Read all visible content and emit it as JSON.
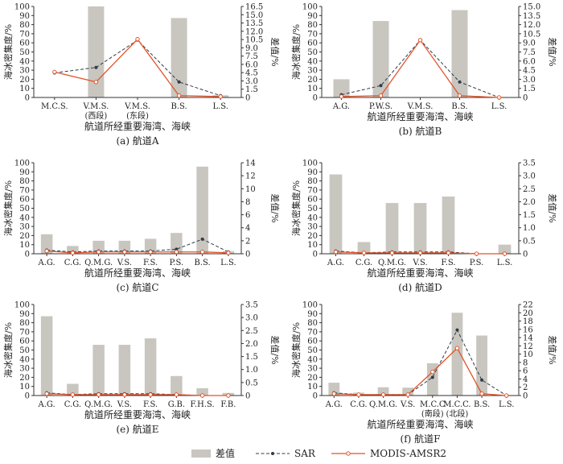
{
  "chart_data": [
    {
      "type": "bar+line",
      "caption": "(a) 航道A",
      "xlabel": "航道所经重要海湾、海峡",
      "ylabel_left": "海冰密集度/%",
      "ylabel_right": "差值/%",
      "categories": [
        "M.C.S.",
        "V.M.S.\n(西段)",
        "V.M.S.\n(东段)",
        "B.S.",
        "L.S."
      ],
      "ylim_left": [
        0,
        100
      ],
      "ylim_right": [
        0,
        16.5
      ],
      "yticks_left": [
        "0",
        "10",
        "20",
        "30",
        "40",
        "50",
        "60",
        "70",
        "80",
        "90",
        "100"
      ],
      "yticks_right": [
        "0",
        "1.5",
        "3.0",
        "4.5",
        "6.0",
        "7.5",
        "9.0",
        "10.5",
        "12.0",
        "13.5",
        "15.0",
        "16.5"
      ],
      "diff": [
        0,
        16.5,
        0,
        14.4,
        0.4
      ],
      "sar": [
        27,
        33,
        63,
        17,
        2
      ],
      "modis": [
        28,
        17,
        64,
        2,
        1
      ]
    },
    {
      "type": "bar+line",
      "caption": "(b) 航道B",
      "xlabel": "航道所经重要海湾、海峡",
      "ylabel_left": "海冰密集度/%",
      "ylabel_right": "差值/%",
      "categories": [
        "A.G.",
        "P.W.S.",
        "V.M.S.",
        "B.S.",
        "L.S."
      ],
      "ylim_left": [
        0,
        100
      ],
      "ylim_right": [
        0,
        15
      ],
      "yticks_left": [
        "0",
        "10",
        "20",
        "30",
        "40",
        "50",
        "60",
        "70",
        "80",
        "90",
        "100"
      ],
      "yticks_right": [
        "0",
        "1.5",
        "3.0",
        "4.5",
        "6.0",
        "7.5",
        "9.0",
        "10.5",
        "12.0",
        "13.5",
        "15.0"
      ],
      "diff": [
        3.0,
        12.6,
        0,
        14.4,
        0
      ],
      "sar": [
        3,
        13,
        63,
        17,
        0
      ],
      "modis": [
        1,
        2,
        63,
        2,
        0
      ]
    },
    {
      "type": "bar+line",
      "caption": "(c) 航道C",
      "xlabel": "航道所经重要海湾、海峡",
      "ylabel_left": "海冰密集度/%",
      "ylabel_right": "差值/%",
      "categories": [
        "A.G.",
        "C.G.",
        "Q.M.G.",
        "V.S.",
        "F.S.",
        "P.S.",
        "B.S.",
        "L.S."
      ],
      "ylim_left": [
        0,
        100
      ],
      "ylim_right": [
        0,
        14
      ],
      "yticks_left": [
        "0",
        "10",
        "20",
        "30",
        "40",
        "50",
        "60",
        "70",
        "80",
        "90",
        "100"
      ],
      "yticks_right": [
        "0",
        "2",
        "4",
        "6",
        "8",
        "10",
        "12",
        "14"
      ],
      "diff": [
        3.0,
        1.2,
        2.0,
        2.0,
        2.3,
        3.2,
        13.4,
        0.4
      ],
      "sar": [
        4,
        2,
        3,
        3,
        3,
        5,
        16,
        2
      ],
      "modis": [
        3,
        1,
        2,
        2,
        2,
        2,
        2,
        1
      ]
    },
    {
      "type": "bar+line",
      "caption": "(d) 航道D",
      "xlabel": "航道所经重要海湾、海峡",
      "ylabel_left": "海冰密集度/%",
      "ylabel_right": "差值/%",
      "categories": [
        "A.G.",
        "C.G.",
        "Q.M.G.",
        "V.S.",
        "F.S.",
        "P.S.",
        "L.S."
      ],
      "ylim_left": [
        0,
        100
      ],
      "ylim_right": [
        0,
        3.5
      ],
      "yticks_left": [
        "0",
        "10",
        "20",
        "30",
        "40",
        "50",
        "60",
        "70",
        "80",
        "90",
        "100"
      ],
      "yticks_right": [
        "0",
        "0.5",
        "1.0",
        "1.5",
        "2.0",
        "2.5",
        "3.0",
        "3.5"
      ],
      "diff": [
        3.05,
        0.45,
        1.95,
        1.95,
        2.2,
        0,
        0.35
      ],
      "sar": [
        3,
        1,
        2,
        2,
        2,
        0,
        0
      ],
      "modis": [
        2,
        1,
        1,
        1,
        1,
        0,
        0
      ]
    },
    {
      "type": "bar+line",
      "caption": "(e) 航道E",
      "xlabel": "航道所经重要海湾、海峡",
      "ylabel_left": "海冰密集度/%",
      "ylabel_right": "差值/%",
      "categories": [
        "A.G.",
        "C.G.",
        "Q.M.G.",
        "V.S.",
        "F.S.",
        "G.B.",
        "F.H.S.",
        "F.B."
      ],
      "ylim_left": [
        0,
        100
      ],
      "ylim_right": [
        0,
        3.5
      ],
      "yticks_left": [
        "0",
        "10",
        "20",
        "30",
        "40",
        "50",
        "60",
        "70",
        "80",
        "90",
        "100"
      ],
      "yticks_right": [
        "0",
        "0.5",
        "1.0",
        "1.5",
        "2.0",
        "2.5",
        "3.0",
        "3.5"
      ],
      "diff": [
        3.05,
        0.45,
        1.95,
        1.95,
        2.2,
        0.75,
        0.28,
        0.1
      ],
      "sar": [
        3,
        1,
        2,
        2,
        2,
        1,
        0,
        0
      ],
      "modis": [
        2,
        1,
        1,
        1,
        1,
        1,
        0,
        0
      ]
    },
    {
      "type": "bar+line",
      "caption": "(f) 航道F",
      "xlabel": "航道所经重要海湾、海峡",
      "ylabel_left": "海冰密集度/%",
      "ylabel_right": "差值/%",
      "categories": [
        "A.G.",
        "C.G.",
        "Q.M.G.",
        "V.S.",
        "M.C.C\n(南段)",
        "M.C.C.\n(北段)",
        "B.S.",
        "L.S."
      ],
      "ylim_left": [
        0,
        100
      ],
      "ylim_right": [
        0,
        22
      ],
      "yticks_left": [
        "0",
        "10",
        "20",
        "30",
        "40",
        "50",
        "60",
        "70",
        "80",
        "90",
        "100"
      ],
      "yticks_right": [
        "0",
        "2",
        "4",
        "6",
        "8",
        "10",
        "12",
        "14",
        "16",
        "18",
        "20",
        "22"
      ],
      "diff": [
        3.1,
        0.7,
        2.0,
        1.9,
        7.8,
        20.0,
        14.5,
        0
      ],
      "sar": [
        3,
        1,
        1,
        1,
        20,
        72,
        17,
        0
      ],
      "modis": [
        2,
        1,
        1,
        1,
        26,
        52,
        2,
        0
      ]
    }
  ],
  "legend": {
    "diff": "差值",
    "sar": "SAR",
    "modis": "MODIS-AMSR2"
  },
  "colors": {
    "bar": "#c9c6c0",
    "sar": "#2e3b4a",
    "modis": "#e2542a",
    "axis": "#333333"
  }
}
